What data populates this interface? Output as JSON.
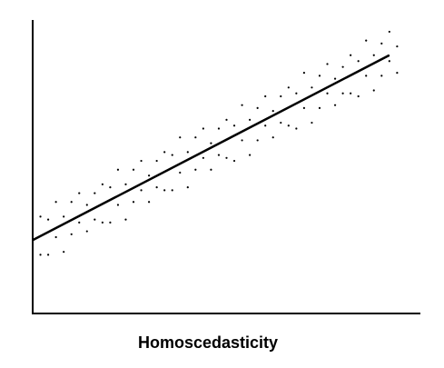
{
  "chart_data": {
    "type": "scatter",
    "title": "Homoscedasticity",
    "xlim": [
      0,
      100
    ],
    "ylim": [
      0,
      100
    ],
    "series": [
      {
        "color": "#000000",
        "x": [
          2,
          2,
          4,
          4,
          6,
          6,
          8,
          8,
          10,
          10,
          12,
          12,
          14,
          14,
          16,
          16,
          18,
          18,
          20,
          20,
          22,
          22,
          24,
          24,
          26,
          26,
          28,
          28,
          30,
          30,
          32,
          32,
          34,
          34,
          36,
          36,
          38,
          38,
          40,
          40,
          42,
          42,
          44,
          44,
          46,
          46,
          48,
          48,
          50,
          50,
          52,
          52,
          54,
          54,
          56,
          56,
          58,
          58,
          60,
          60,
          62,
          62,
          64,
          64,
          66,
          66,
          68,
          68,
          70,
          70,
          72,
          72,
          74,
          74,
          76,
          76,
          78,
          78,
          80,
          80,
          82,
          82,
          84,
          84,
          86,
          86,
          88,
          88,
          90,
          90,
          92,
          92,
          94,
          94
        ],
        "y": [
          33,
          20,
          32,
          20,
          38,
          26,
          33,
          21,
          38,
          27,
          41,
          31,
          37,
          28,
          41,
          32,
          44,
          31,
          43,
          31,
          49,
          37,
          44,
          32,
          49,
          38,
          52,
          42,
          47,
          38,
          52,
          43,
          55,
          42,
          54,
          42,
          60,
          48,
          55,
          43,
          60,
          49,
          63,
          53,
          58,
          49,
          63,
          54,
          66,
          53,
          64,
          52,
          71,
          59,
          66,
          54,
          70,
          59,
          74,
          64,
          69,
          60,
          74,
          65,
          77,
          64,
          75,
          63,
          82,
          70,
          77,
          65,
          81,
          70,
          85,
          75,
          80,
          71,
          84,
          75,
          88,
          75,
          86,
          74,
          93,
          81,
          88,
          76,
          92,
          81,
          96,
          86,
          91,
          82
        ]
      }
    ],
    "fit_line": {
      "color": "#000000",
      "x": [
        0,
        92
      ],
      "y": [
        25,
        88
      ]
    }
  }
}
